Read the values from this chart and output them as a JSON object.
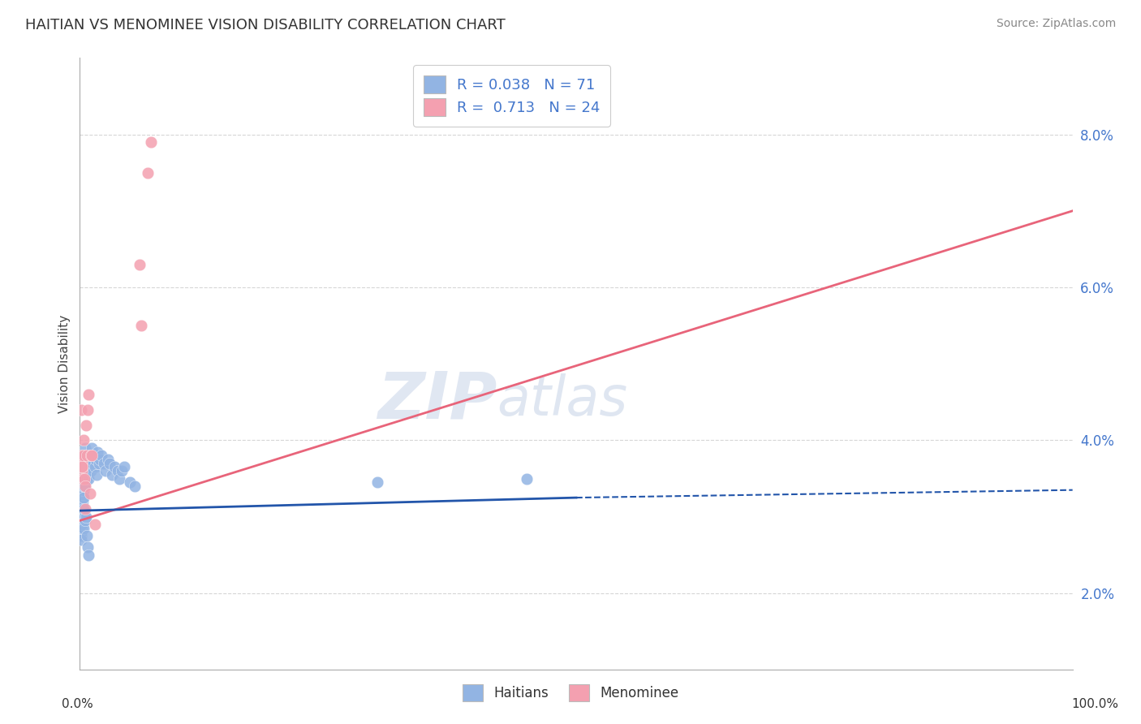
{
  "title": "HAITIAN VS MENOMINEE VISION DISABILITY CORRELATION CHART",
  "source": "Source: ZipAtlas.com",
  "ylabel": "Vision Disability",
  "legend_haitians": "Haitians",
  "legend_menominee": "Menominee",
  "haitians_R": "0.038",
  "haitians_N": "71",
  "menominee_R": "0.713",
  "menominee_N": "24",
  "haitians_color": "#92b4e3",
  "menominee_color": "#f4a0b0",
  "haitians_line_color": "#2255aa",
  "menominee_line_color": "#e8647a",
  "background_color": "#ffffff",
  "grid_color": "#cccccc",
  "haitians_x": [
    0.0008,
    0.001,
    0.0012,
    0.0014,
    0.0015,
    0.0016,
    0.0018,
    0.002,
    0.0022,
    0.0024,
    0.0025,
    0.0026,
    0.0028,
    0.003,
    0.0032,
    0.0034,
    0.0035,
    0.0036,
    0.0038,
    0.004,
    0.0042,
    0.0044,
    0.0046,
    0.0048,
    0.005,
    0.0055,
    0.006,
    0.0065,
    0.007,
    0.0075,
    0.008,
    0.009,
    0.01,
    0.011,
    0.012,
    0.013,
    0.014,
    0.015,
    0.016,
    0.017,
    0.018,
    0.019,
    0.02,
    0.022,
    0.024,
    0.026,
    0.028,
    0.03,
    0.032,
    0.035,
    0.038,
    0.04,
    0.042,
    0.045,
    0.05,
    0.055,
    0.001,
    0.0015,
    0.002,
    0.0025,
    0.003,
    0.0035,
    0.004,
    0.0045,
    0.005,
    0.006,
    0.007,
    0.008,
    0.009,
    0.3,
    0.45
  ],
  "haitians_y": [
    0.0295,
    0.031,
    0.0285,
    0.03,
    0.032,
    0.0275,
    0.0305,
    0.0295,
    0.0315,
    0.029,
    0.031,
    0.033,
    0.032,
    0.03,
    0.0315,
    0.0335,
    0.0345,
    0.0325,
    0.034,
    0.038,
    0.036,
    0.035,
    0.037,
    0.034,
    0.039,
    0.038,
    0.036,
    0.037,
    0.035,
    0.036,
    0.037,
    0.035,
    0.038,
    0.036,
    0.039,
    0.037,
    0.038,
    0.0365,
    0.0375,
    0.0355,
    0.0385,
    0.037,
    0.0375,
    0.038,
    0.037,
    0.036,
    0.0375,
    0.037,
    0.0355,
    0.0365,
    0.036,
    0.035,
    0.036,
    0.0365,
    0.0345,
    0.034,
    0.028,
    0.027,
    0.0285,
    0.029,
    0.0295,
    0.0285,
    0.031,
    0.03,
    0.0295,
    0.03,
    0.0275,
    0.026,
    0.025,
    0.0345,
    0.035
  ],
  "menominee_x": [
    0.001,
    0.0015,
    0.002,
    0.0025,
    0.003,
    0.0035,
    0.004,
    0.0045,
    0.005,
    0.0055,
    0.006,
    0.007,
    0.008,
    0.009,
    0.01,
    0.011,
    0.012,
    0.015,
    0.0018,
    0.0025,
    0.06,
    0.062,
    0.068,
    0.072
  ],
  "menominee_y": [
    0.044,
    0.038,
    0.036,
    0.037,
    0.035,
    0.038,
    0.04,
    0.035,
    0.034,
    0.031,
    0.042,
    0.038,
    0.044,
    0.046,
    0.033,
    0.038,
    0.038,
    0.029,
    0.0365,
    0.0365,
    0.063,
    0.055,
    0.075,
    0.079
  ],
  "menominee_line_x0": 0.0,
  "menominee_line_x1": 1.0,
  "menominee_line_y0": 0.0295,
  "menominee_line_y1": 0.07,
  "haitians_line_x0": 0.0,
  "haitians_line_x1_solid": 0.5,
  "haitians_line_x1_dash": 1.0,
  "haitians_line_y0": 0.0308,
  "haitians_line_y1_solid": 0.0325,
  "haitians_line_y1_dash": 0.0335,
  "xlim": [
    0.0,
    1.0
  ],
  "ylim": [
    0.01,
    0.09
  ],
  "yticks": [
    0.02,
    0.04,
    0.06,
    0.08
  ],
  "ytick_labels": [
    "2.0%",
    "4.0%",
    "6.0%",
    "8.0%"
  ]
}
